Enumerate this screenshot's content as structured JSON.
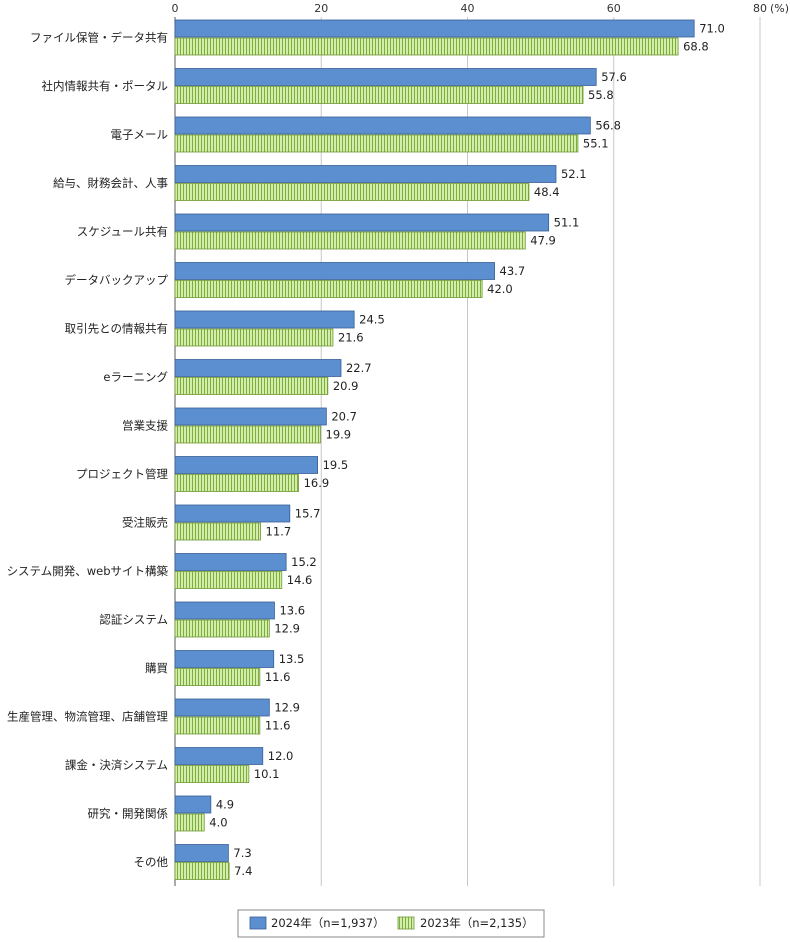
{
  "chart_data": {
    "type": "bar",
    "orientation": "horizontal",
    "unit": "(%)",
    "xlim": [
      0,
      80
    ],
    "ticks": [
      0,
      20,
      40,
      60,
      80
    ],
    "grid": true,
    "legend_position": "bottom",
    "categories": [
      "ファイル保管・データ共有",
      "社内情報共有・ポータル",
      "電子メール",
      "給与、財務会計、人事",
      "スケジュール共有",
      "データバックアップ",
      "取引先との情報共有",
      "eラーニング",
      "営業支援",
      "プロジェクト管理",
      "受注販売",
      "システム開発、webサイト構築",
      "認証システム",
      "購買",
      "生産管理、物流管理、店舗管理",
      "課金・決済システム",
      "研究・開発関係",
      "その他"
    ],
    "series": [
      {
        "name": "2024年（n=1,937）",
        "color": "#5b8fd0",
        "pattern": "solid",
        "values": [
          71.0,
          57.6,
          56.8,
          52.1,
          51.1,
          43.7,
          24.5,
          22.7,
          20.7,
          19.5,
          15.7,
          15.2,
          13.6,
          13.5,
          12.9,
          12.0,
          4.9,
          7.3
        ],
        "labels": [
          "71.0",
          "57.6",
          "56.8",
          "52.1",
          "51.1",
          "43.7",
          "24.5",
          "22.7",
          "20.7",
          "19.5",
          "15.7",
          "15.2",
          "13.6",
          "13.5",
          "12.9",
          "12.0",
          "4.9",
          "7.3"
        ]
      },
      {
        "name": "2023年（n=2,135）",
        "color": "#c6e59a",
        "stripe_color": "#6f9a34",
        "pattern": "vertical-stripes",
        "values": [
          68.8,
          55.8,
          55.1,
          48.4,
          47.9,
          42.0,
          21.6,
          20.9,
          19.9,
          16.9,
          11.7,
          14.6,
          12.9,
          11.6,
          11.6,
          10.1,
          4.0,
          7.4
        ],
        "labels": [
          "68.8",
          "55.8",
          "55.1",
          "48.4",
          "47.9",
          "42.0",
          "21.6",
          "20.9",
          "19.9",
          "16.9",
          "11.7",
          "14.6",
          "12.9",
          "11.6",
          "11.6",
          "10.1",
          "4.0",
          "7.4"
        ]
      }
    ]
  }
}
